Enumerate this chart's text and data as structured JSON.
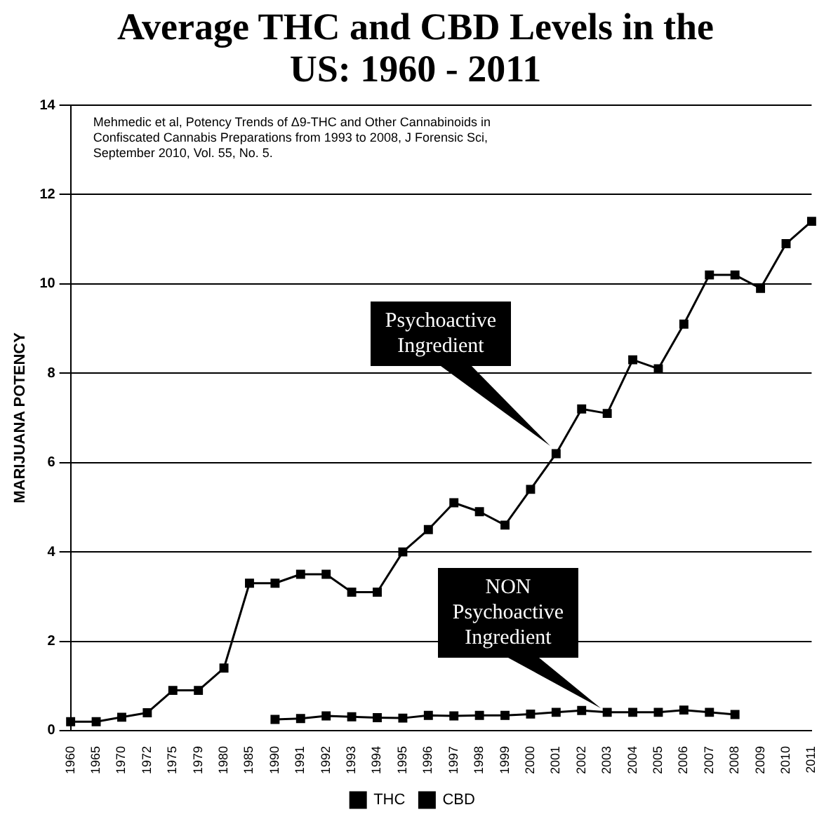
{
  "chart_data": {
    "type": "line",
    "title": "Average THC and CBD Levels in the US: 1960 - 2011",
    "ylabel": "MARIJUANA POTENCY",
    "categories": [
      "1960",
      "1965",
      "1970",
      "1972",
      "1975",
      "1979",
      "1980",
      "1985",
      "1990",
      "1991",
      "1992",
      "1993",
      "1994",
      "1995",
      "1996",
      "1997",
      "1998",
      "1999",
      "2000",
      "2001",
      "2002",
      "2003",
      "2004",
      "2005",
      "2006",
      "2007",
      "2008",
      "2009",
      "2010",
      "2011"
    ],
    "series": [
      {
        "name": "THC",
        "color": "#000000",
        "values": [
          0.2,
          0.2,
          0.3,
          0.4,
          0.9,
          0.9,
          1.4,
          3.3,
          3.3,
          3.5,
          3.5,
          3.1,
          3.1,
          4.0,
          4.5,
          5.1,
          4.9,
          4.6,
          5.4,
          6.2,
          7.2,
          7.1,
          8.3,
          8.1,
          9.1,
          10.2,
          10.2,
          9.9,
          10.9,
          11.4
        ]
      },
      {
        "name": "CBD",
        "color": "#000000",
        "values": [
          null,
          null,
          null,
          null,
          null,
          null,
          null,
          null,
          0.25,
          0.27,
          0.33,
          0.31,
          0.29,
          0.28,
          0.34,
          0.33,
          0.34,
          0.34,
          0.37,
          0.41,
          0.45,
          0.41,
          0.41,
          0.41,
          0.46,
          0.41,
          0.36,
          null,
          null,
          null
        ]
      }
    ],
    "ylim": [
      0,
      14
    ],
    "yticks": [
      0,
      2,
      4,
      6,
      8,
      10,
      12,
      14
    ],
    "grid": "y",
    "legend": "bottom",
    "marker": "square",
    "line_style": "solid",
    "annotations": [
      "Mehmedic et al, Potency Trends of Δ9-THC and Other Cannabinoids in Confiscated Cannabis Preparations from 1993 to 2008, J Forensic Sci, September 2010, Vol. 55, No. 5.",
      "Psychoactive Ingredient",
      "NON Psychoactive Ingredient"
    ]
  }
}
